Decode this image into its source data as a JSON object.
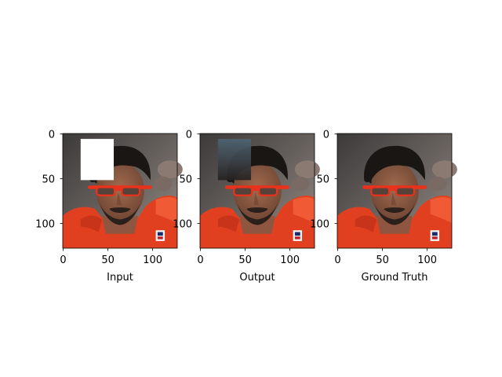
{
  "panels": [
    {
      "xlabel": "Input",
      "xticks": [
        "0",
        "50",
        "100"
      ],
      "yticks": [
        "0",
        "50",
        "100"
      ],
      "image": "face-photo-with-white-occlusion-mask",
      "mask": "white"
    },
    {
      "xlabel": "Output",
      "xticks": [
        "0",
        "50",
        "100"
      ],
      "yticks": [
        "0",
        "50",
        "100"
      ],
      "image": "face-photo-with-inpainted-region",
      "mask": "inpainted"
    },
    {
      "xlabel": "Ground Truth",
      "xticks": [
        "0",
        "50",
        "100"
      ],
      "yticks": [
        "0",
        "50",
        "100"
      ],
      "image": "face-photo-original",
      "mask": "none"
    }
  ],
  "image_extent": {
    "x": [
      0,
      128
    ],
    "y": [
      0,
      128
    ]
  },
  "mask_region": {
    "x": [
      20,
      57
    ],
    "y": [
      6,
      52
    ]
  },
  "colors": {
    "background": "#ffffff",
    "jersey": "#e0401f",
    "glasses": "#e8321c",
    "skin": "#8a5a43",
    "hair": "#1a1614",
    "mask_fill": "#ffffff",
    "inpaint_fill": "#4a5a66"
  }
}
